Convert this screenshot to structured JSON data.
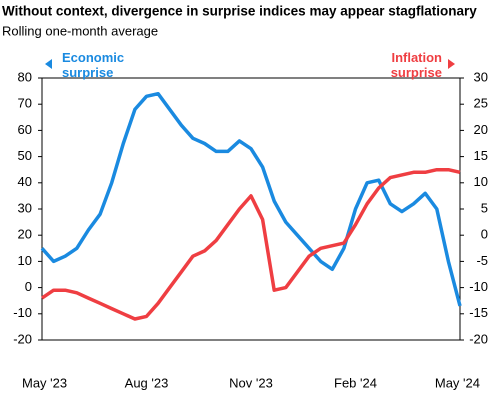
{
  "chart_data": {
    "type": "line",
    "title": "Without context, divergence in surprise indices may appear stagflationary",
    "subtitle": "Rolling one-month average",
    "categories": [
      "May '23",
      null,
      null,
      null,
      null,
      null,
      null,
      null,
      null,
      "Aug '23",
      null,
      null,
      null,
      null,
      null,
      null,
      null,
      null,
      "Nov '23",
      null,
      null,
      null,
      null,
      null,
      null,
      null,
      null,
      "Feb '24",
      null,
      null,
      null,
      null,
      null,
      null,
      null,
      null,
      "May '24"
    ],
    "series": [
      {
        "name": "Economic surprise",
        "color": "#1a8ae0",
        "axis": "y",
        "values": [
          15,
          10,
          12,
          15,
          22,
          28,
          40,
          55,
          68,
          73,
          74,
          68,
          62,
          57,
          55,
          52,
          52,
          56,
          53,
          46,
          33,
          25,
          20,
          15,
          10,
          7,
          15,
          30,
          40,
          41,
          32,
          29,
          32,
          36,
          30,
          10,
          -7
        ]
      },
      {
        "name": "Inflation surprise",
        "color": "#ef3e42",
        "axis": "y2",
        "values": [
          -12,
          -10.5,
          -10.5,
          -11,
          -12,
          -13,
          -14,
          -15,
          -16,
          -15.5,
          -13,
          -10,
          -7,
          -4,
          -3,
          -1,
          2,
          5,
          7.5,
          3,
          -10.5,
          -10,
          -7,
          -4,
          -2.5,
          -2,
          -1.5,
          2,
          6,
          9,
          11,
          11.5,
          12,
          12,
          12.5,
          12.5,
          12
        ]
      }
    ],
    "ylim": [
      -20,
      80
    ],
    "yticks": [
      -20,
      -10,
      0,
      10,
      20,
      30,
      40,
      50,
      60,
      70,
      80
    ],
    "y2lim": [
      -20,
      30
    ],
    "y2ticks": [
      -20,
      -15,
      -10,
      -5,
      0,
      5,
      10,
      15,
      20,
      25,
      30
    ]
  }
}
